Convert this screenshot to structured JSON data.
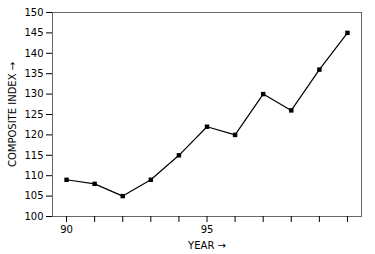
{
  "chart_data": {
    "type": "line",
    "xlabel": "YEAR",
    "ylabel": "COMPOSITE INDEX",
    "x": [
      90,
      91,
      92,
      93,
      94,
      95,
      96,
      97,
      98,
      99,
      100
    ],
    "values": [
      109,
      108,
      105,
      109,
      115,
      122,
      120,
      130,
      126,
      136,
      145
    ],
    "color": "#000000",
    "marker": "square",
    "xlim": [
      89.5,
      100.5
    ],
    "ylim": [
      100,
      150
    ],
    "xticks": [
      90,
      {
        "value": 91,
        "label": null
      },
      {
        "value": 92,
        "label": null
      },
      {
        "value": 93,
        "label": null
      },
      {
        "value": 94,
        "label": null
      },
      95,
      {
        "value": 96,
        "label": null
      },
      {
        "value": 97,
        "label": null
      },
      {
        "value": 98,
        "label": null
      },
      {
        "value": 99,
        "label": null
      },
      {
        "value": 100,
        "label": null
      }
    ],
    "yticks": [
      100,
      105,
      110,
      115,
      120,
      125,
      130,
      135,
      140,
      145,
      150
    ]
  }
}
